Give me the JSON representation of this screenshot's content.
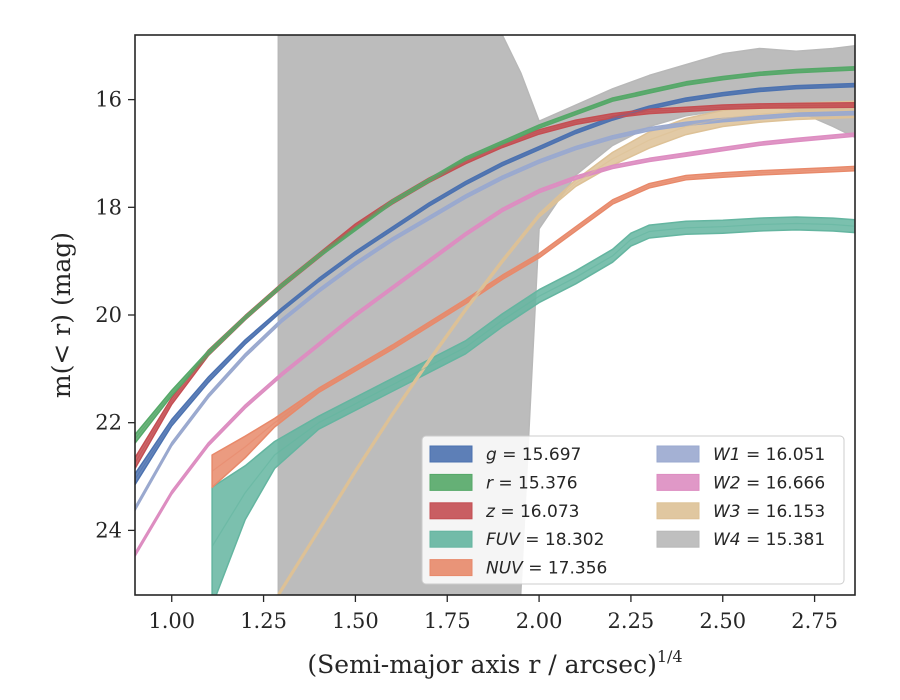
{
  "chart_data": {
    "type": "area",
    "xlabel": "(Semi-major axis r / arcsec)",
    "xlabel_superscript": "1/4",
    "ylabel": "m(< r) (mag)",
    "xlim": [
      0.9,
      2.86
    ],
    "ylim": [
      25.2,
      14.8
    ],
    "y_inverted": true,
    "xticks": [
      1.0,
      1.25,
      1.5,
      1.75,
      2.0,
      2.25,
      2.5,
      2.75
    ],
    "xtick_labels": [
      "1.00",
      "1.25",
      "1.50",
      "1.75",
      "2.00",
      "2.25",
      "2.50",
      "2.75"
    ],
    "yticks": [
      16,
      18,
      20,
      22,
      24
    ],
    "ytick_labels": [
      "16",
      "18",
      "20",
      "22",
      "24"
    ],
    "grid": false,
    "legend_placement": "lower-right",
    "series": [
      {
        "name": "g = 15.697",
        "band": "g",
        "mag": "15.697",
        "color": "#4c72b0",
        "x": [
          0.9,
          1.0,
          1.1,
          1.2,
          1.3,
          1.4,
          1.5,
          1.6,
          1.7,
          1.8,
          1.9,
          2.0,
          2.1,
          2.2,
          2.3,
          2.4,
          2.5,
          2.6,
          2.7,
          2.86
        ],
        "y": [
          23.05,
          22.0,
          21.2,
          20.5,
          19.9,
          19.35,
          18.85,
          18.4,
          17.95,
          17.55,
          17.2,
          16.9,
          16.6,
          16.35,
          16.15,
          16.0,
          15.9,
          15.82,
          15.77,
          15.73
        ],
        "y_spread": [
          0.1,
          0.06,
          0.05,
          0.04,
          0.03,
          0.03,
          0.03,
          0.03,
          0.03,
          0.03,
          0.03,
          0.03,
          0.03,
          0.03,
          0.03,
          0.03,
          0.03,
          0.03,
          0.03,
          0.03
        ]
      },
      {
        "name": "r = 15.376",
        "band": "r",
        "mag": "15.376",
        "color": "#55a868",
        "x": [
          0.9,
          1.0,
          1.1,
          1.2,
          1.3,
          1.4,
          1.5,
          1.6,
          1.7,
          1.8,
          1.9,
          2.0,
          2.1,
          2.2,
          2.3,
          2.4,
          2.5,
          2.6,
          2.7,
          2.86
        ],
        "y": [
          22.3,
          21.45,
          20.7,
          20.05,
          19.45,
          18.9,
          18.4,
          17.9,
          17.5,
          17.1,
          16.8,
          16.5,
          16.25,
          16.0,
          15.85,
          15.7,
          15.6,
          15.52,
          15.47,
          15.42
        ],
        "y_spread": [
          0.08,
          0.05,
          0.04,
          0.03,
          0.03,
          0.03,
          0.03,
          0.03,
          0.03,
          0.03,
          0.03,
          0.03,
          0.03,
          0.03,
          0.03,
          0.03,
          0.03,
          0.03,
          0.03,
          0.03
        ]
      },
      {
        "name": "z = 16.073",
        "band": "z",
        "mag": "16.073",
        "color": "#c44e52",
        "x": [
          0.9,
          1.0,
          1.1,
          1.2,
          1.3,
          1.4,
          1.5,
          1.6,
          1.7,
          1.8,
          1.9,
          2.0,
          2.1,
          2.2,
          2.3,
          2.4,
          2.5,
          2.6,
          2.7,
          2.86
        ],
        "y": [
          22.75,
          21.6,
          20.7,
          20.05,
          19.45,
          18.9,
          18.35,
          17.9,
          17.5,
          17.15,
          16.85,
          16.6,
          16.42,
          16.3,
          16.22,
          16.18,
          16.14,
          16.12,
          16.11,
          16.1
        ],
        "y_spread": [
          0.1,
          0.06,
          0.05,
          0.04,
          0.04,
          0.04,
          0.04,
          0.04,
          0.04,
          0.04,
          0.04,
          0.04,
          0.04,
          0.04,
          0.04,
          0.04,
          0.04,
          0.04,
          0.04,
          0.04
        ]
      },
      {
        "name": "FUV = 18.302",
        "band": "FUV",
        "mag": "18.302",
        "color": "#64b5a0",
        "x": [
          1.11,
          1.2,
          1.28,
          1.4,
          1.6,
          1.8,
          1.9,
          2.0,
          2.1,
          2.2,
          2.25,
          2.3,
          2.4,
          2.5,
          2.6,
          2.7,
          2.8,
          2.86
        ],
        "y": [
          24.3,
          23.3,
          22.6,
          22.0,
          21.3,
          20.6,
          20.1,
          19.65,
          19.3,
          18.9,
          18.6,
          18.45,
          18.38,
          18.36,
          18.32,
          18.3,
          18.32,
          18.35
        ],
        "y_spread": [
          1.1,
          0.5,
          0.25,
          0.12,
          0.12,
          0.12,
          0.12,
          0.12,
          0.12,
          0.12,
          0.12,
          0.12,
          0.12,
          0.12,
          0.12,
          0.12,
          0.12,
          0.12
        ]
      },
      {
        "name": "NUV = 17.356",
        "band": "NUV",
        "mag": "17.356",
        "color": "#e8896a",
        "x": [
          1.11,
          1.2,
          1.28,
          1.4,
          1.6,
          1.8,
          1.9,
          2.0,
          2.1,
          2.2,
          2.3,
          2.4,
          2.5,
          2.6,
          2.7,
          2.8,
          2.86
        ],
        "y": [
          22.9,
          22.45,
          22.0,
          21.4,
          20.6,
          19.75,
          19.3,
          18.9,
          18.4,
          17.9,
          17.6,
          17.45,
          17.4,
          17.36,
          17.33,
          17.3,
          17.28
        ],
        "y_spread": [
          0.3,
          0.2,
          0.08,
          0.04,
          0.04,
          0.04,
          0.04,
          0.04,
          0.04,
          0.04,
          0.04,
          0.04,
          0.04,
          0.04,
          0.04,
          0.04,
          0.04
        ]
      },
      {
        "name": "W1 = 16.051",
        "band": "W1",
        "mag": "16.051",
        "color": "#9aa9cf",
        "x": [
          0.9,
          1.0,
          1.1,
          1.2,
          1.3,
          1.4,
          1.5,
          1.6,
          1.7,
          1.8,
          1.9,
          2.0,
          2.1,
          2.2,
          2.3,
          2.4,
          2.5,
          2.6,
          2.7,
          2.86
        ],
        "y": [
          23.6,
          22.4,
          21.5,
          20.75,
          20.1,
          19.55,
          19.05,
          18.6,
          18.2,
          17.8,
          17.45,
          17.15,
          16.9,
          16.7,
          16.55,
          16.45,
          16.38,
          16.33,
          16.28,
          16.25
        ],
        "y_spread": [
          0.03,
          0.03,
          0.03,
          0.03,
          0.03,
          0.03,
          0.03,
          0.03,
          0.03,
          0.03,
          0.03,
          0.03,
          0.03,
          0.03,
          0.03,
          0.03,
          0.03,
          0.03,
          0.03,
          0.03
        ]
      },
      {
        "name": "W2 = 16.666",
        "band": "W2",
        "mag": "16.666",
        "color": "#dd8dc1",
        "x": [
          0.9,
          1.0,
          1.1,
          1.2,
          1.3,
          1.4,
          1.5,
          1.6,
          1.7,
          1.8,
          1.9,
          2.0,
          2.1,
          2.2,
          2.3,
          2.4,
          2.5,
          2.6,
          2.7,
          2.86
        ],
        "y": [
          24.45,
          23.3,
          22.4,
          21.7,
          21.1,
          20.55,
          20.0,
          19.5,
          19.0,
          18.5,
          18.05,
          17.7,
          17.45,
          17.25,
          17.12,
          17.02,
          16.92,
          16.82,
          16.75,
          16.65
        ],
        "y_spread": [
          0.03,
          0.03,
          0.03,
          0.03,
          0.03,
          0.03,
          0.03,
          0.03,
          0.03,
          0.03,
          0.03,
          0.03,
          0.03,
          0.03,
          0.03,
          0.03,
          0.03,
          0.03,
          0.03,
          0.03
        ]
      },
      {
        "name": "W3 = 16.153",
        "band": "W3",
        "mag": "16.153",
        "color": "#ddc196",
        "x": [
          1.29,
          1.4,
          1.5,
          1.6,
          1.7,
          1.8,
          1.9,
          2.0,
          2.1,
          2.2,
          2.3,
          2.4,
          2.5,
          2.6,
          2.7,
          2.86
        ],
        "y": [
          25.2,
          24.0,
          22.9,
          21.85,
          20.85,
          19.9,
          19.0,
          18.15,
          17.55,
          17.1,
          16.75,
          16.5,
          16.35,
          16.27,
          16.22,
          16.18
        ],
        "y_spread": [
          0.03,
          0.03,
          0.03,
          0.03,
          0.03,
          0.03,
          0.03,
          0.03,
          0.06,
          0.12,
          0.15,
          0.15,
          0.15,
          0.15,
          0.15,
          0.15
        ]
      },
      {
        "name": "W4 = 15.381",
        "band": "W4",
        "mag": "15.381",
        "color": "#b8b8b8",
        "x": [
          1.29,
          1.4,
          1.5,
          1.6,
          1.7,
          1.8,
          1.9,
          1.95,
          2.0,
          2.1,
          2.2,
          2.3,
          2.4,
          2.5,
          2.6,
          2.7,
          2.8,
          2.86
        ],
        "y": [
          24.0,
          22.4,
          21.5,
          20.8,
          20.2,
          19.4,
          18.6,
          18.2,
          17.5,
          16.8,
          16.25,
          15.9,
          15.7,
          15.6,
          15.55,
          15.6,
          15.75,
          15.9
        ],
        "y_lower": [
          25.2,
          25.2,
          25.2,
          25.2,
          25.2,
          25.2,
          25.2,
          25.2,
          18.4,
          17.4,
          16.85,
          16.5,
          16.3,
          16.2,
          16.1,
          16.2,
          16.5,
          16.7
        ],
        "y_upper": [
          14.8,
          14.8,
          14.8,
          14.8,
          14.8,
          14.8,
          14.8,
          15.5,
          16.4,
          16.1,
          15.8,
          15.55,
          15.35,
          15.15,
          15.05,
          15.1,
          15.05,
          15.0
        ]
      }
    ]
  }
}
